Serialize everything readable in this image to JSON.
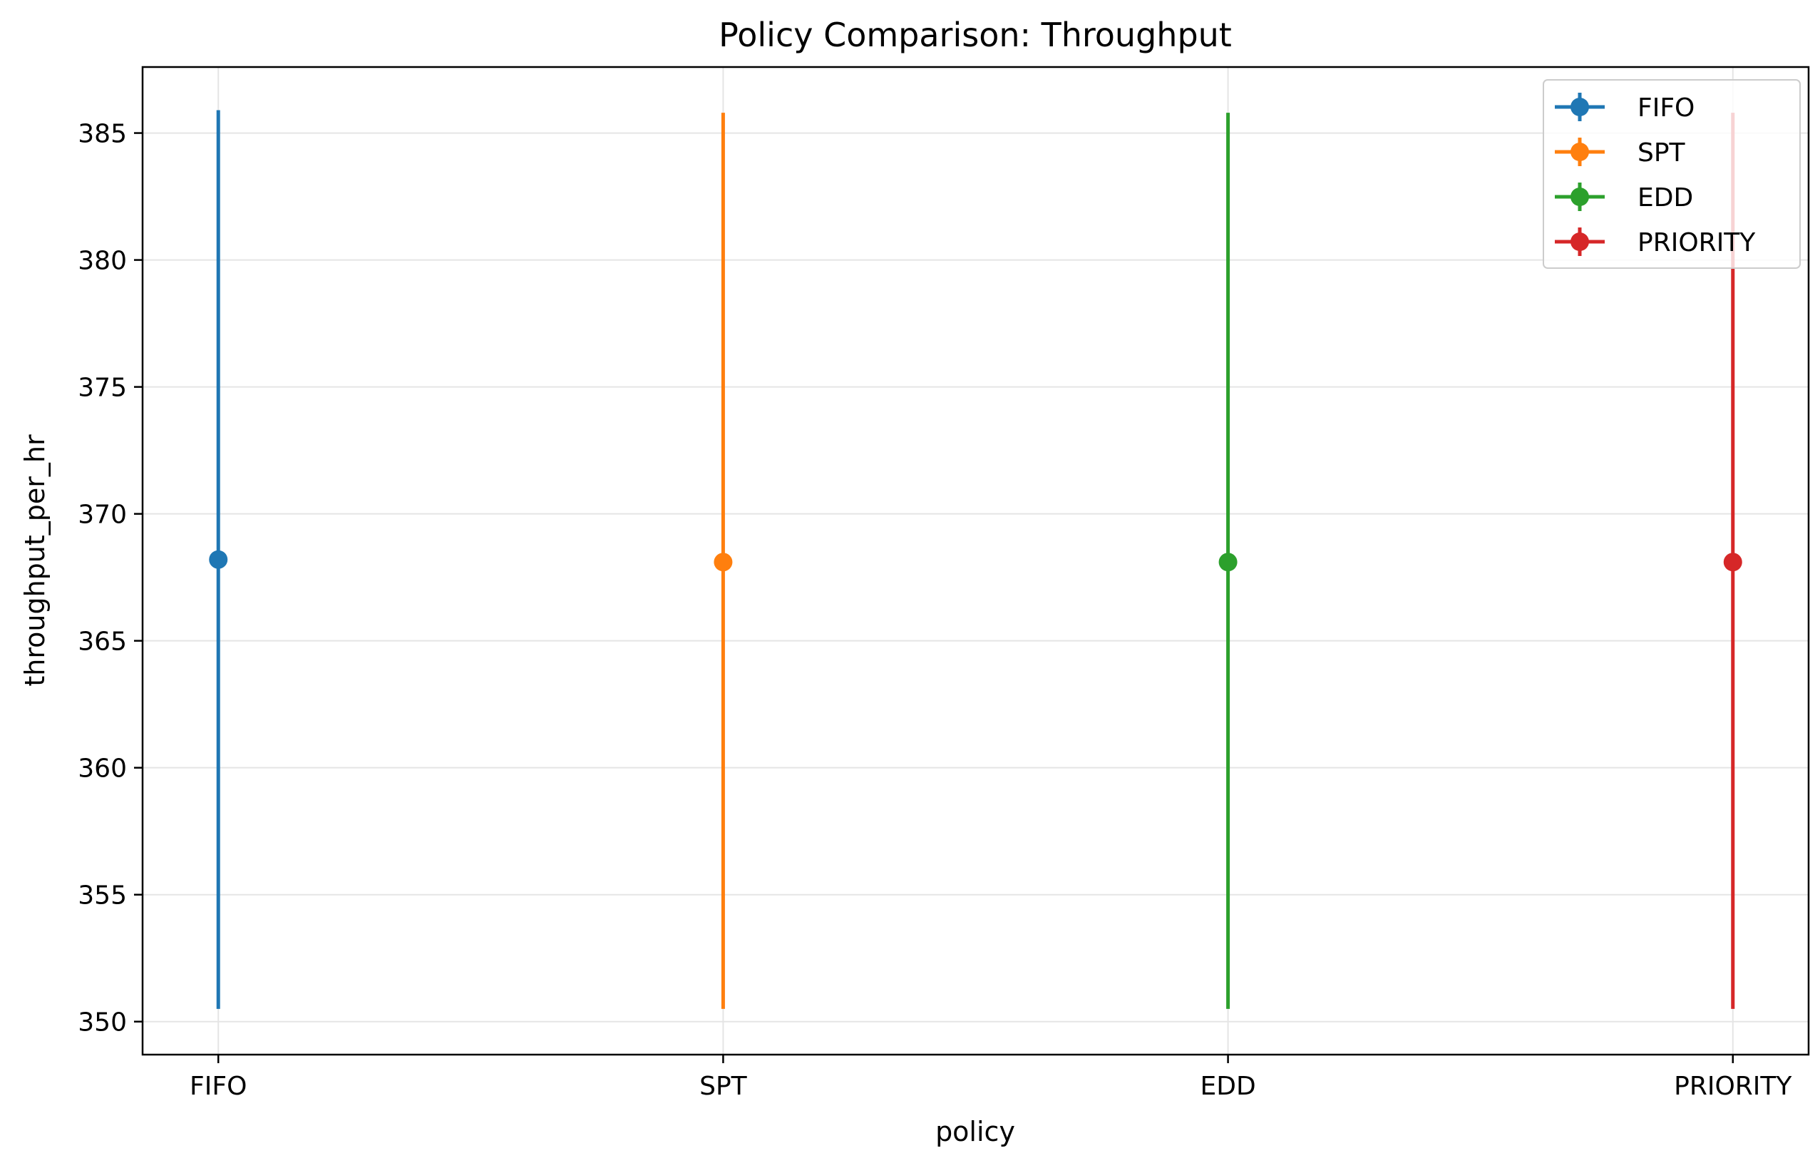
{
  "chart_data": {
    "type": "errorbar",
    "title": "Policy Comparison: Throughput",
    "xlabel": "policy",
    "ylabel": "throughput_per_hr",
    "categories": [
      "FIFO",
      "SPT",
      "EDD",
      "PRIORITY"
    ],
    "ylim": [
      348.7,
      387.6
    ],
    "yticks": [
      350,
      355,
      360,
      365,
      370,
      375,
      380,
      385
    ],
    "grid": true,
    "legend_position": "top-right",
    "series": [
      {
        "name": "FIFO",
        "color": "#1f77b4",
        "x": "FIFO",
        "value": 368.2,
        "err_low": 350.5,
        "err_high": 385.9
      },
      {
        "name": "SPT",
        "color": "#ff7f0e",
        "x": "SPT",
        "value": 368.1,
        "err_low": 350.5,
        "err_high": 385.8
      },
      {
        "name": "EDD",
        "color": "#2ca02c",
        "x": "EDD",
        "value": 368.1,
        "err_low": 350.5,
        "err_high": 385.8
      },
      {
        "name": "PRIORITY",
        "color": "#d62728",
        "x": "PRIORITY",
        "value": 368.1,
        "err_low": 350.5,
        "err_high": 385.8
      }
    ]
  }
}
